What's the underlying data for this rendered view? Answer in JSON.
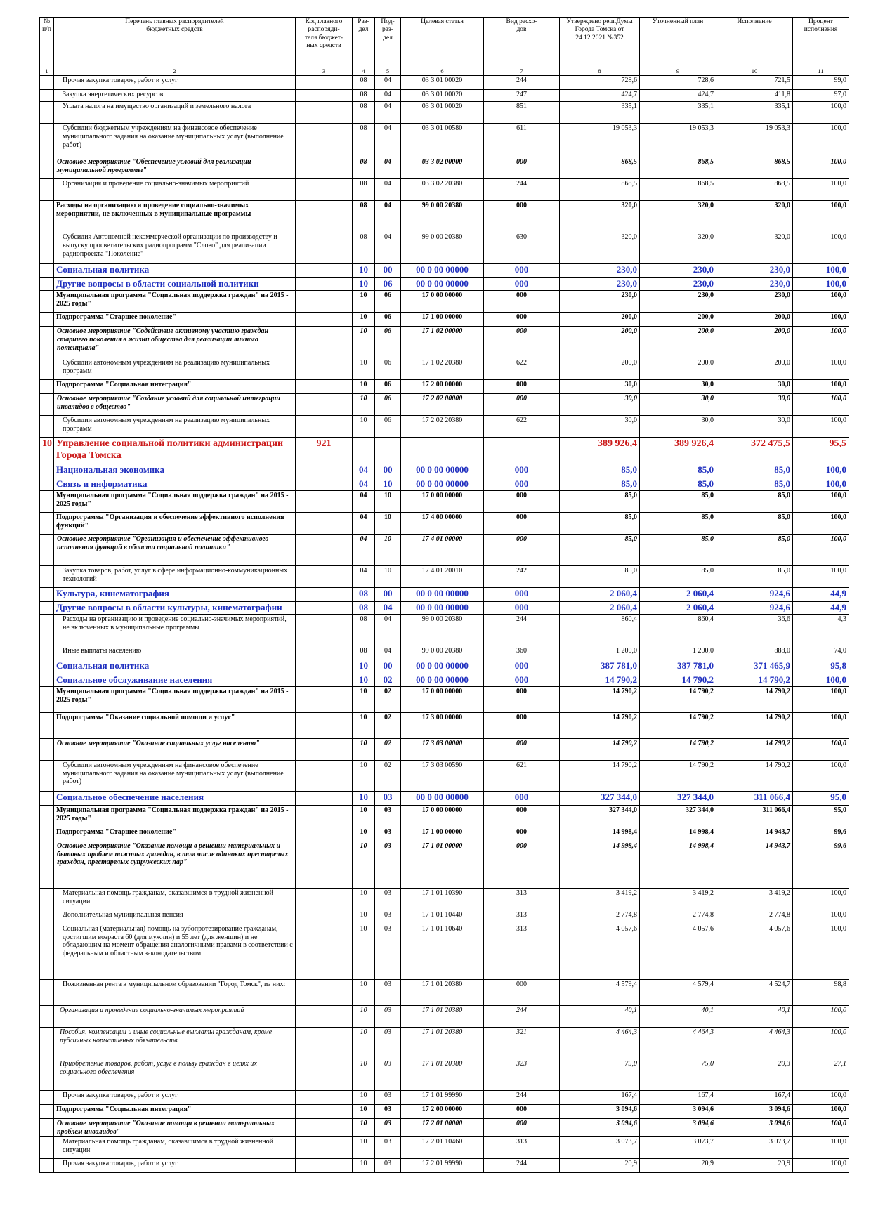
{
  "header": {
    "cols": [
      "№\nп/п",
      "Перечень главных распорядителей\nбюджетных средств",
      "Код главного\nраспоряди-\nтеля бюджет-\nных средств",
      "Раз-\nдел",
      "Под-\nраз-\nдел",
      "Целевая статья",
      "Вид расхо-\nдов",
      "Утверждено реш.Думы\nГорода Томска от\n24.12.2021 №352",
      "Уточненный план",
      "Исполнение",
      "Процент\nисполнения"
    ],
    "numbers": [
      "1",
      "2",
      "3",
      "4",
      "5",
      "6",
      "7",
      "8",
      "9",
      "10",
      "11"
    ]
  },
  "rows": [
    {
      "no": "",
      "name": "Прочая закупка товаров, работ и услуг",
      "code": "",
      "r": "08",
      "p": "04",
      "cs": "03 3 01 00020",
      "vr": "244",
      "a": "728,6",
      "b": "728,6",
      "c": "721,5",
      "d": "99,0",
      "s": "normal"
    },
    {
      "no": "",
      "name": "Закупка энергетических ресурсов",
      "code": "",
      "r": "08",
      "p": "04",
      "cs": "03 3 01 00020",
      "vr": "247",
      "a": "424,7",
      "b": "424,7",
      "c": "411,8",
      "d": "97,0",
      "s": "normal"
    },
    {
      "no": "",
      "name": "Уплата налога на имущество организаций и земельного налога",
      "code": "",
      "r": "08",
      "p": "04",
      "cs": "03 3 01 00020",
      "vr": "851",
      "a": "335,1",
      "b": "335,1",
      "c": "335,1",
      "d": "100,0",
      "s": "normal"
    },
    {
      "no": "",
      "name": "Субсидии бюджетным учреждениям на финансовое обеспечение муниципального задания на оказание муниципальных услуг (выполнение работ)",
      "code": "",
      "r": "08",
      "p": "04",
      "cs": "03 3 01 00580",
      "vr": "611",
      "a": "19 053,3",
      "b": "19 053,3",
      "c": "19 053,3",
      "d": "100,0",
      "s": "normal"
    },
    {
      "no": "",
      "name": "Основное мероприятие \"Обеспечение условий для реализации муниципальной программы\"",
      "code": "",
      "r": "08",
      "p": "04",
      "cs": "03 3 02 00000",
      "vr": "000",
      "a": "868,5",
      "b": "868,5",
      "c": "868,5",
      "d": "100,0",
      "s": "bold-italic"
    },
    {
      "no": "",
      "name": "Организация и проведение социально-значимых мероприятий",
      "code": "",
      "r": "08",
      "p": "04",
      "cs": "03 3 02 20380",
      "vr": "244",
      "a": "868,5",
      "b": "868,5",
      "c": "868,5",
      "d": "100,0",
      "s": "normal"
    },
    {
      "no": "",
      "name": "Расходы на организацию и проведение социально-значимых мероприятий, не включенных в муниципальные программы",
      "code": "",
      "r": "08",
      "p": "04",
      "cs": "99 0 00 20380",
      "vr": "000",
      "a": "320,0",
      "b": "320,0",
      "c": "320,0",
      "d": "100,0",
      "s": "bold"
    },
    {
      "no": "",
      "name": "Субсидия Автономной некоммерческой организации по производству и выпуску просветительских радиопрограмм \"Слово\" для реализации радиопроекта \"Поколение\"",
      "code": "",
      "r": "08",
      "p": "04",
      "cs": "99 0 00 20380",
      "vr": "630",
      "a": "320,0",
      "b": "320,0",
      "c": "320,0",
      "d": "100,0",
      "s": "normal"
    },
    {
      "no": "",
      "name": "Социальная политика",
      "code": "",
      "r": "10",
      "p": "00",
      "cs": "00 0 00 00000",
      "vr": "000",
      "a": "230,0",
      "b": "230,0",
      "c": "230,0",
      "d": "100,0",
      "s": "blue"
    },
    {
      "no": "",
      "name": "Другие вопросы в области социальной политики",
      "code": "",
      "r": "10",
      "p": "06",
      "cs": "00 0 00 00000",
      "vr": "000",
      "a": "230,0",
      "b": "230,0",
      "c": "230,0",
      "d": "100,0",
      "s": "blue"
    },
    {
      "no": "",
      "name": "Муниципальная программа \"Социальная поддержка граждан\" на 2015 - 2025 годы\"",
      "code": "",
      "r": "10",
      "p": "06",
      "cs": "17 0 00 00000",
      "vr": "000",
      "a": "230,0",
      "b": "230,0",
      "c": "230,0",
      "d": "100,0",
      "s": "bold"
    },
    {
      "no": "",
      "name": "Подпрограмма \"Старшее поколение\"",
      "code": "",
      "r": "10",
      "p": "06",
      "cs": "17 1 00 00000",
      "vr": "000",
      "a": "200,0",
      "b": "200,0",
      "c": "200,0",
      "d": "100,0",
      "s": "bold"
    },
    {
      "no": "",
      "name": "Основное мероприятие \"Содействие активному участию граждан старшего поколения в жизни общества для реализации личного потенциала\"",
      "code": "",
      "r": "10",
      "p": "06",
      "cs": "17 1 02 00000",
      "vr": "000",
      "a": "200,0",
      "b": "200,0",
      "c": "200,0",
      "d": "100,0",
      "s": "bold-italic"
    },
    {
      "no": "",
      "name": "Субсидии автономным учреждениям на реализацию муниципальных программ",
      "code": "",
      "r": "10",
      "p": "06",
      "cs": "17 1 02 20380",
      "vr": "622",
      "a": "200,0",
      "b": "200,0",
      "c": "200,0",
      "d": "100,0",
      "s": "normal"
    },
    {
      "no": "",
      "name": "Подпрограмма \"Социальная интеграция\"",
      "code": "",
      "r": "10",
      "p": "06",
      "cs": "17 2 00 00000",
      "vr": "000",
      "a": "30,0",
      "b": "30,0",
      "c": "30,0",
      "d": "100,0",
      "s": "bold"
    },
    {
      "no": "",
      "name": "Основное мероприятие \"Создание условий для социальной интеграции инвалидов в общество\"",
      "code": "",
      "r": "10",
      "p": "06",
      "cs": "17 2 02 00000",
      "vr": "000",
      "a": "30,0",
      "b": "30,0",
      "c": "30,0",
      "d": "100,0",
      "s": "bold-italic"
    },
    {
      "no": "",
      "name": "Субсидии автономным учреждениям на реализацию муниципальных программ",
      "code": "",
      "r": "10",
      "p": "06",
      "cs": "17 2 02 20380",
      "vr": "622",
      "a": "30,0",
      "b": "30,0",
      "c": "30,0",
      "d": "100,0",
      "s": "normal"
    },
    {
      "no": "10",
      "name": "Управление социальной политики администрации Города Томска",
      "code": "921",
      "r": "",
      "p": "",
      "cs": "",
      "vr": "",
      "a": "389 926,4",
      "b": "389 926,4",
      "c": "372 475,5",
      "d": "95,5",
      "s": "red"
    },
    {
      "no": "",
      "name": "Национальная экономика",
      "code": "",
      "r": "04",
      "p": "00",
      "cs": "00 0 00 00000",
      "vr": "000",
      "a": "85,0",
      "b": "85,0",
      "c": "85,0",
      "d": "100,0",
      "s": "blue"
    },
    {
      "no": "",
      "name": "Связь и информатика",
      "code": "",
      "r": "04",
      "p": "10",
      "cs": "00 0 00 00000",
      "vr": "000",
      "a": "85,0",
      "b": "85,0",
      "c": "85,0",
      "d": "100,0",
      "s": "blue"
    },
    {
      "no": "",
      "name": "Муниципальная программа \"Социальная поддержка граждан\" на 2015 - 2025 годы\"",
      "code": "",
      "r": "04",
      "p": "10",
      "cs": "17 0 00 00000",
      "vr": "000",
      "a": "85,0",
      "b": "85,0",
      "c": "85,0",
      "d": "100,0",
      "s": "bold"
    },
    {
      "no": "",
      "name": "Подпрограмма \"Организация и обеспечение эффективного исполнения функций\"",
      "code": "",
      "r": "04",
      "p": "10",
      "cs": "17 4 00 00000",
      "vr": "000",
      "a": "85,0",
      "b": "85,0",
      "c": "85,0",
      "d": "100,0",
      "s": "bold"
    },
    {
      "no": "",
      "name": "Основное мероприятие \"Организация и обеспечение эффективного исполнения функций в области социальной политики\"",
      "code": "",
      "r": "04",
      "p": "10",
      "cs": "17 4 01 00000",
      "vr": "000",
      "a": "85,0",
      "b": "85,0",
      "c": "85,0",
      "d": "100,0",
      "s": "bold-italic"
    },
    {
      "no": "",
      "name": "Закупка товаров, работ, услуг в сфере информационно-коммуникационных технологий",
      "code": "",
      "r": "04",
      "p": "10",
      "cs": "17 4 01 20010",
      "vr": "242",
      "a": "85,0",
      "b": "85,0",
      "c": "85,0",
      "d": "100,0",
      "s": "normal"
    },
    {
      "no": "",
      "name": "Культура, кинематография",
      "code": "",
      "r": "08",
      "p": "00",
      "cs": "00 0 00 00000",
      "vr": "000",
      "a": "2 060,4",
      "b": "2 060,4",
      "c": "924,6",
      "d": "44,9",
      "s": "blue"
    },
    {
      "no": "",
      "name": "Другие вопросы в области культуры, кинематографии",
      "code": "",
      "r": "08",
      "p": "04",
      "cs": "00 0 00 00000",
      "vr": "000",
      "a": "2 060,4",
      "b": "2 060,4",
      "c": "924,6",
      "d": "44,9",
      "s": "blue"
    },
    {
      "no": "",
      "name": "Расходы на организацию и проведение социально-значимых мероприятий, не включенных в муниципальные программы",
      "code": "",
      "r": "08",
      "p": "04",
      "cs": "99 0 00 20380",
      "vr": "244",
      "a": "860,4",
      "b": "860,4",
      "c": "36,6",
      "d": "4,3",
      "s": "normal"
    },
    {
      "no": "",
      "name": "Иные выплаты населению",
      "code": "",
      "r": "08",
      "p": "04",
      "cs": "99 0 00 20380",
      "vr": "360",
      "a": "1 200,0",
      "b": "1 200,0",
      "c": "888,0",
      "d": "74,0",
      "s": "normal"
    },
    {
      "no": "",
      "name": "Социальная политика",
      "code": "",
      "r": "10",
      "p": "00",
      "cs": "00 0 00 00000",
      "vr": "000",
      "a": "387 781,0",
      "b": "387 781,0",
      "c": "371 465,9",
      "d": "95,8",
      "s": "blue"
    },
    {
      "no": "",
      "name": "Социальное обслуживание населения",
      "code": "",
      "r": "10",
      "p": "02",
      "cs": "00 0 00 00000",
      "vr": "000",
      "a": "14 790,2",
      "b": "14 790,2",
      "c": "14 790,2",
      "d": "100,0",
      "s": "blue"
    },
    {
      "no": "",
      "name": "Муниципальная программа \"Социальная поддержка граждан\" на 2015 - 2025 годы\"",
      "code": "",
      "r": "10",
      "p": "02",
      "cs": "17 0 00 00000",
      "vr": "000",
      "a": "14 790,2",
      "b": "14 790,2",
      "c": "14 790,2",
      "d": "100,0",
      "s": "bold"
    },
    {
      "no": "",
      "name": "Подпрограмма \"Оказание социальной помощи и услуг\"",
      "code": "",
      "r": "10",
      "p": "02",
      "cs": "17 3 00 00000",
      "vr": "000",
      "a": "14 790,2",
      "b": "14 790,2",
      "c": "14 790,2",
      "d": "100,0",
      "s": "bold"
    },
    {
      "no": "",
      "name": "Основное мероприятие \"Оказание социальных услуг населению\"",
      "code": "",
      "r": "10",
      "p": "02",
      "cs": "17 3 03 00000",
      "vr": "000",
      "a": "14 790,2",
      "b": "14 790,2",
      "c": "14 790,2",
      "d": "100,0",
      "s": "bold-italic"
    },
    {
      "no": "",
      "name": "Субсидии автономным учреждениям на финансовое обеспечение муниципального задания на оказание муниципальных услуг (выполнение работ)",
      "code": "",
      "r": "10",
      "p": "02",
      "cs": "17 3 03 00590",
      "vr": "621",
      "a": "14 790,2",
      "b": "14 790,2",
      "c": "14 790,2",
      "d": "100,0",
      "s": "normal"
    },
    {
      "no": "",
      "name": "Социальное обеспечение населения",
      "code": "",
      "r": "10",
      "p": "03",
      "cs": "00 0 00 00000",
      "vr": "000",
      "a": "327 344,0",
      "b": "327 344,0",
      "c": "311 066,4",
      "d": "95,0",
      "s": "blue"
    },
    {
      "no": "",
      "name": "Муниципальная программа \"Социальная поддержка граждан\" на 2015 - 2025 годы\"",
      "code": "",
      "r": "10",
      "p": "03",
      "cs": "17 0 00 00000",
      "vr": "000",
      "a": "327 344,0",
      "b": "327 344,0",
      "c": "311 066,4",
      "d": "95,0",
      "s": "bold"
    },
    {
      "no": "",
      "name": "Подпрограмма \"Старшее поколение\"",
      "code": "",
      "r": "10",
      "p": "03",
      "cs": "17 1 00 00000",
      "vr": "000",
      "a": "14 998,4",
      "b": "14 998,4",
      "c": "14 943,7",
      "d": "99,6",
      "s": "bold"
    },
    {
      "no": "",
      "name": "Основное мероприятие \"Оказание помощи в решении материальных и бытовых проблем пожилых граждан, в том числе одиноких престарелых граждан, престарелых супружеских пар\"",
      "code": "",
      "r": "10",
      "p": "03",
      "cs": "17 1 01 00000",
      "vr": "000",
      "a": "14 998,4",
      "b": "14 998,4",
      "c": "14 943,7",
      "d": "99,6",
      "s": "bold-italic"
    },
    {
      "no": "",
      "name": "Материальная помощь гражданам, оказавшимся в трудной жизненной ситуации",
      "code": "",
      "r": "10",
      "p": "03",
      "cs": "17 1 01 10390",
      "vr": "313",
      "a": "3 419,2",
      "b": "3 419,2",
      "c": "3 419,2",
      "d": "100,0",
      "s": "normal"
    },
    {
      "no": "",
      "name": "Дополнительная муниципальная пенсия",
      "code": "",
      "r": "10",
      "p": "03",
      "cs": "17 1 01 10440",
      "vr": "313",
      "a": "2 774,8",
      "b": "2 774,8",
      "c": "2 774,8",
      "d": "100,0",
      "s": "normal"
    },
    {
      "no": "",
      "name": "Социальная (материальная) помощь на зубопротезирование гражданам, достигшим возраста 60 (для мужчин) и 55 лет (для женщин) и не обладающим на момент обращения аналогичными правами в соответствии с федеральным и областным законодательством",
      "code": "",
      "r": "10",
      "p": "03",
      "cs": "17 1 01 10640",
      "vr": "313",
      "a": "4 057,6",
      "b": "4 057,6",
      "c": "4 057,6",
      "d": "100,0",
      "s": "normal"
    },
    {
      "no": "",
      "name": "Пожизненная рента в муниципальном образовании \"Город Томск\", из них:",
      "code": "",
      "r": "10",
      "p": "03",
      "cs": "17 1 01 20380",
      "vr": "000",
      "a": "4 579,4",
      "b": "4 579,4",
      "c": "4 524,7",
      "d": "98,8",
      "s": "normal"
    },
    {
      "no": "",
      "name": "Организация и проведение социально-значимых мероприятий",
      "code": "",
      "r": "10",
      "p": "03",
      "cs": "17 1 01 20380",
      "vr": "244",
      "a": "40,1",
      "b": "40,1",
      "c": "40,1",
      "d": "100,0",
      "s": "italic"
    },
    {
      "no": "",
      "name": "Пособия, компенсации и иные социальные выплаты гражданам, кроме публичных нормативных обязательств",
      "code": "",
      "r": "10",
      "p": "03",
      "cs": "17 1 01 20380",
      "vr": "321",
      "a": "4 464,3",
      "b": "4 464,3",
      "c": "4 464,3",
      "d": "100,0",
      "s": "italic"
    },
    {
      "no": "",
      "name": "Приобретение товаров, работ, услуг в пользу граждан в целях их социального обеспечения",
      "code": "",
      "r": "10",
      "p": "03",
      "cs": "17 1 01 20380",
      "vr": "323",
      "a": "75,0",
      "b": "75,0",
      "c": "20,3",
      "d": "27,1",
      "s": "italic"
    },
    {
      "no": "",
      "name": "Прочая закупка товаров, работ и услуг",
      "code": "",
      "r": "10",
      "p": "03",
      "cs": "17 1 01 99990",
      "vr": "244",
      "a": "167,4",
      "b": "167,4",
      "c": "167,4",
      "d": "100,0",
      "s": "normal"
    },
    {
      "no": "",
      "name": "Подпрограмма \"Социальная интеграция\"",
      "code": "",
      "r": "10",
      "p": "03",
      "cs": "17 2 00 00000",
      "vr": "000",
      "a": "3 094,6",
      "b": "3 094,6",
      "c": "3 094,6",
      "d": "100,0",
      "s": "bold"
    },
    {
      "no": "",
      "name": "Основное мероприятие \"Оказание помощи в решении материальных проблем инвалидов\"",
      "code": "",
      "r": "10",
      "p": "03",
      "cs": "17 2 01 00000",
      "vr": "000",
      "a": "3 094,6",
      "b": "3 094,6",
      "c": "3 094,6",
      "d": "100,0",
      "s": "bold-italic"
    },
    {
      "no": "",
      "name": "Материальная помощь гражданам, оказавшимся в трудной жизненной ситуации",
      "code": "",
      "r": "10",
      "p": "03",
      "cs": "17 2 01 10460",
      "vr": "313",
      "a": "3 073,7",
      "b": "3 073,7",
      "c": "3 073,7",
      "d": "100,0",
      "s": "normal"
    },
    {
      "no": "",
      "name": "Прочая закупка товаров, работ и услуг",
      "code": "",
      "r": "10",
      "p": "03",
      "cs": "17 2 01 99990",
      "vr": "244",
      "a": "20,9",
      "b": "20,9",
      "c": "20,9",
      "d": "100,0",
      "s": "normal"
    }
  ]
}
